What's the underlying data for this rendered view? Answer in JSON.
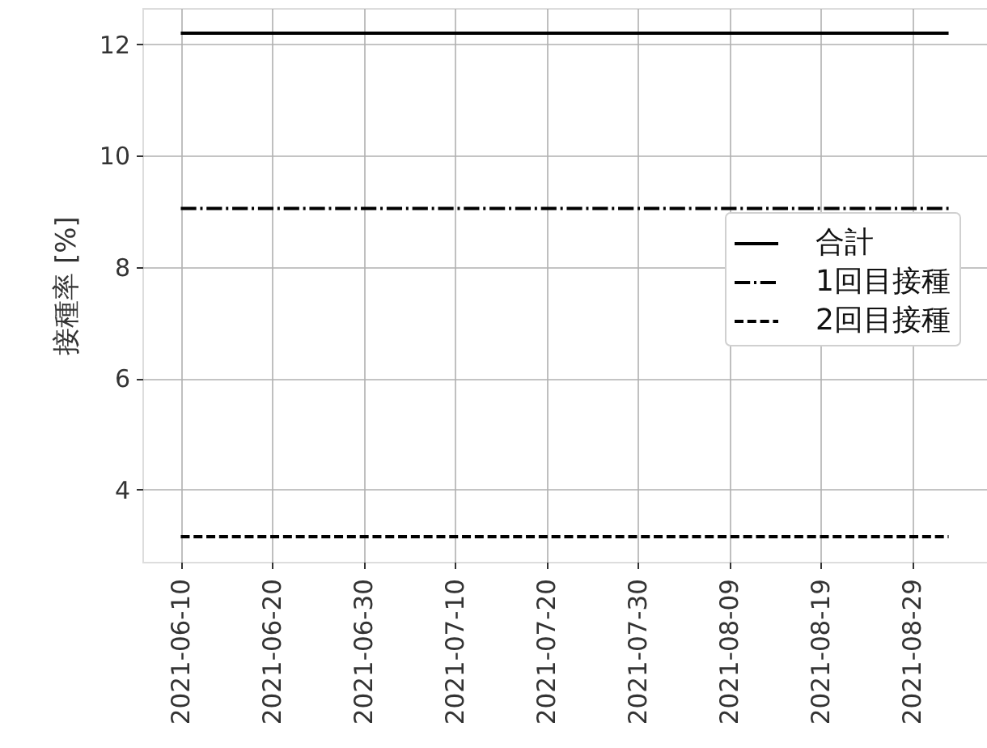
{
  "chart_data": {
    "type": "line",
    "ylabel": "接種率 [%]",
    "xlim": [
      "2021-06-05T19:12",
      "2021-09-06T04:48"
    ],
    "ylim": [
      2.7,
      12.65
    ],
    "xticks": [
      "2021-06-10",
      "2021-06-20",
      "2021-06-30",
      "2021-07-10",
      "2021-07-20",
      "2021-07-30",
      "2021-08-09",
      "2021-08-19",
      "2021-08-29"
    ],
    "yticks": [
      4,
      6,
      8,
      10,
      12
    ],
    "grid": true,
    "legend": "right",
    "series": [
      {
        "name": "合計",
        "color": "#000000",
        "line_style": "solid",
        "x": [
          "2021-06-10",
          "2021-09-02"
        ],
        "values": [
          12.2,
          12.2
        ]
      },
      {
        "name": "1回目接種",
        "color": "#000000",
        "line_style": "dashdot",
        "x": [
          "2021-06-10",
          "2021-09-02"
        ],
        "values": [
          9.05,
          9.05
        ]
      },
      {
        "name": "2回目接種",
        "color": "#000000",
        "line_style": "dashed",
        "x": [
          "2021-06-10",
          "2021-09-02"
        ],
        "values": [
          3.15,
          3.15
        ]
      }
    ]
  }
}
